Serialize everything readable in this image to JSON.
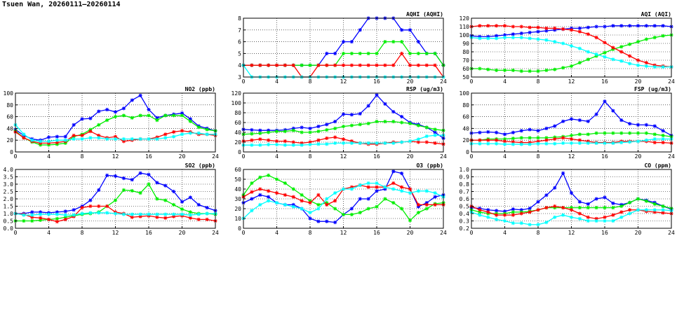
{
  "title": "Tsuen Wan, 20260111—20260114",
  "colors": {
    "blue": "#0000ff",
    "green": "#00ee00",
    "red": "#ff0000",
    "cyan": "#00ffff",
    "axis": "#000000",
    "grid": "#000000"
  },
  "chart_data": [
    {
      "id": "aqhi",
      "type": "line",
      "title": "AQHI (AQHI)",
      "xticks": [
        "0",
        "4",
        "8",
        "12",
        "16",
        "20",
        "24"
      ],
      "yticks": [
        "3",
        "4",
        "5",
        "6",
        "7",
        "8"
      ],
      "xlim": [
        0,
        24
      ],
      "ylim": [
        3,
        8
      ],
      "grid": true,
      "series": [
        {
          "color": "blue",
          "values": [
            4,
            4,
            4,
            4,
            4,
            4,
            4,
            4,
            4,
            4,
            5,
            5,
            6,
            6,
            7,
            8,
            8,
            8,
            8,
            7,
            7,
            6,
            5,
            5,
            4
          ]
        },
        {
          "color": "green",
          "values": [
            4,
            4,
            4,
            4,
            4,
            4,
            4,
            4,
            4,
            4,
            4,
            4,
            5,
            5,
            5,
            5,
            5,
            6,
            6,
            6,
            5,
            5,
            5,
            5,
            4
          ]
        },
        {
          "color": "red",
          "values": [
            4,
            4,
            4,
            4,
            4,
            4,
            4,
            3,
            3,
            4,
            4,
            4,
            4,
            4,
            4,
            4,
            4,
            4,
            4,
            5,
            4,
            4,
            4,
            4,
            3
          ]
        },
        {
          "color": "cyan",
          "values": [
            4,
            3,
            3,
            3,
            3,
            3,
            3,
            3,
            3,
            3,
            3,
            3,
            3,
            3,
            3,
            3,
            3,
            3,
            3,
            3,
            3,
            3,
            3,
            3,
            3
          ]
        }
      ]
    },
    {
      "id": "aqi",
      "type": "line",
      "title": "AQI (AQI)",
      "xticks": [
        "0",
        "4",
        "8",
        "12",
        "16",
        "20",
        "24"
      ],
      "yticks": [
        "50",
        "60",
        "70",
        "80",
        "90",
        "100",
        "110",
        "120"
      ],
      "xlim": [
        0,
        24
      ],
      "ylim": [
        50,
        120
      ],
      "grid": true,
      "series": [
        {
          "color": "blue",
          "values": [
            99,
            98,
            98,
            99,
            100,
            101,
            102,
            103,
            104,
            105,
            106,
            107,
            108,
            108,
            109,
            110,
            110,
            111,
            111,
            111,
            111,
            111,
            111,
            111,
            110
          ]
        },
        {
          "color": "green",
          "values": [
            60,
            60,
            59,
            58,
            58,
            58,
            57,
            57,
            57,
            58,
            59,
            61,
            63,
            67,
            71,
            75,
            79,
            83,
            86,
            89,
            92,
            95,
            97,
            99,
            100
          ]
        },
        {
          "color": "red",
          "values": [
            110,
            111,
            111,
            111,
            111,
            110,
            110,
            109,
            109,
            108,
            108,
            107,
            106,
            104,
            101,
            97,
            91,
            85,
            80,
            75,
            70,
            67,
            64,
            63,
            62
          ]
        },
        {
          "color": "cyan",
          "values": [
            97,
            96,
            96,
            96,
            97,
            97,
            97,
            96,
            95,
            94,
            92,
            90,
            87,
            84,
            80,
            77,
            74,
            71,
            69,
            66,
            64,
            63,
            62,
            62,
            62
          ]
        }
      ]
    },
    {
      "id": "no2",
      "type": "line",
      "title": "NO2 (ppb)",
      "xticks": [
        "0",
        "4",
        "8",
        "12",
        "16",
        "20",
        "24"
      ],
      "yticks": [
        "0",
        "20",
        "40",
        "60",
        "80",
        "100"
      ],
      "xlim": [
        0,
        24
      ],
      "ylim": [
        0,
        100
      ],
      "grid": true,
      "series": [
        {
          "color": "blue",
          "values": [
            38,
            28,
            22,
            20,
            25,
            26,
            26,
            46,
            56,
            57,
            69,
            72,
            68,
            74,
            88,
            96,
            72,
            58,
            62,
            64,
            66,
            56,
            44,
            40,
            36
          ]
        },
        {
          "color": "green",
          "values": [
            36,
            24,
            17,
            12,
            12,
            13,
            15,
            26,
            30,
            38,
            46,
            54,
            60,
            62,
            58,
            62,
            62,
            54,
            62,
            62,
            62,
            52,
            42,
            38,
            36
          ]
        },
        {
          "color": "red",
          "values": [
            34,
            24,
            18,
            15,
            15,
            16,
            18,
            28,
            28,
            35,
            28,
            24,
            26,
            18,
            20,
            22,
            22,
            25,
            30,
            34,
            36,
            34,
            30,
            30,
            28
          ]
        },
        {
          "color": "cyan",
          "values": [
            46,
            30,
            20,
            18,
            18,
            20,
            20,
            22,
            22,
            24,
            24,
            22,
            22,
            22,
            22,
            22,
            22,
            22,
            24,
            26,
            30,
            32,
            32,
            30,
            30
          ]
        }
      ]
    },
    {
      "id": "rsp",
      "type": "line",
      "title": "RSP (ug/m3)",
      "xticks": [
        "0",
        "4",
        "8",
        "12",
        "16",
        "20",
        "24"
      ],
      "yticks": [
        "0",
        "20",
        "40",
        "60",
        "80",
        "100",
        "120"
      ],
      "xlim": [
        0,
        24
      ],
      "ylim": [
        0,
        120
      ],
      "grid": true,
      "series": [
        {
          "color": "blue",
          "values": [
            46,
            45,
            44,
            44,
            44,
            45,
            48,
            50,
            48,
            52,
            56,
            62,
            77,
            76,
            78,
            94,
            116,
            98,
            82,
            72,
            60,
            56,
            50,
            40,
            28
          ]
        },
        {
          "color": "green",
          "values": [
            36,
            37,
            38,
            40,
            42,
            42,
            44,
            40,
            40,
            42,
            45,
            48,
            52,
            54,
            56,
            58,
            62,
            62,
            62,
            60,
            58,
            54,
            50,
            46,
            44
          ]
        },
        {
          "color": "red",
          "values": [
            22,
            24,
            26,
            24,
            22,
            22,
            20,
            18,
            20,
            24,
            28,
            30,
            26,
            22,
            18,
            16,
            16,
            18,
            20,
            20,
            22,
            20,
            20,
            18,
            16
          ]
        },
        {
          "color": "cyan",
          "values": [
            14,
            14,
            14,
            15,
            15,
            14,
            14,
            14,
            15,
            16,
            16,
            18,
            18,
            18,
            18,
            18,
            18,
            18,
            18,
            20,
            22,
            26,
            32,
            34,
            34
          ]
        }
      ]
    },
    {
      "id": "fsp",
      "type": "line",
      "title": "FSP (ug/m3)",
      "xticks": [
        "0",
        "4",
        "8",
        "12",
        "16",
        "20",
        "24"
      ],
      "yticks": [
        "0",
        "20",
        "40",
        "60",
        "80",
        "100"
      ],
      "xlim": [
        0,
        24
      ],
      "ylim": [
        0,
        100
      ],
      "grid": true,
      "series": [
        {
          "color": "blue",
          "values": [
            32,
            33,
            34,
            33,
            30,
            33,
            36,
            38,
            36,
            40,
            44,
            52,
            56,
            54,
            52,
            64,
            86,
            70,
            54,
            48,
            46,
            46,
            44,
            36,
            28
          ]
        },
        {
          "color": "green",
          "values": [
            20,
            20,
            22,
            22,
            22,
            23,
            24,
            24,
            24,
            24,
            25,
            26,
            28,
            30,
            30,
            32,
            32,
            32,
            32,
            32,
            32,
            32,
            30,
            28,
            26
          ]
        },
        {
          "color": "red",
          "values": [
            20,
            20,
            20,
            20,
            18,
            17,
            16,
            16,
            18,
            20,
            22,
            24,
            22,
            20,
            18,
            16,
            16,
            16,
            18,
            18,
            18,
            18,
            16,
            16,
            15
          ]
        },
        {
          "color": "cyan",
          "values": [
            14,
            14,
            14,
            14,
            13,
            13,
            13,
            13,
            14,
            14,
            14,
            15,
            15,
            15,
            15,
            15,
            15,
            15,
            16,
            17,
            18,
            20,
            22,
            22,
            22
          ]
        }
      ]
    },
    {
      "id": "so2",
      "type": "line",
      "title": "SO2 (ppb)",
      "xticks": [
        "0",
        "4",
        "8",
        "12",
        "16",
        "20",
        "24"
      ],
      "yticks": [
        "0.0",
        "0.5",
        "1.0",
        "1.5",
        "2.0",
        "2.5",
        "3.0",
        "3.5",
        "4.0"
      ],
      "xlim": [
        0,
        24
      ],
      "ylim": [
        0,
        4
      ],
      "grid": true,
      "series": [
        {
          "color": "blue",
          "values": [
            1.0,
            1.0,
            1.1,
            1.1,
            1.05,
            1.1,
            1.15,
            1.25,
            1.5,
            1.9,
            2.6,
            3.6,
            3.55,
            3.4,
            3.3,
            3.75,
            3.65,
            3.1,
            2.9,
            2.5,
            1.8,
            2.1,
            1.6,
            1.4,
            1.2
          ]
        },
        {
          "color": "green",
          "values": [
            0.5,
            0.5,
            0.5,
            0.55,
            0.6,
            0.65,
            0.75,
            0.85,
            0.95,
            1.0,
            1.1,
            1.5,
            1.9,
            2.6,
            2.55,
            2.4,
            3.0,
            2.0,
            1.9,
            1.6,
            1.3,
            1.1,
            1.0,
            1.0,
            0.95
          ]
        },
        {
          "color": "red",
          "values": [
            1.0,
            0.95,
            0.75,
            0.7,
            0.6,
            0.45,
            0.6,
            0.8,
            1.4,
            1.5,
            1.5,
            1.5,
            1.1,
            1.0,
            0.75,
            0.8,
            0.85,
            0.75,
            0.7,
            0.8,
            0.85,
            0.7,
            0.6,
            0.6,
            0.5
          ]
        },
        {
          "color": "cyan",
          "values": [
            1.0,
            0.9,
            0.9,
            0.95,
            0.95,
            0.95,
            0.9,
            0.9,
            1.0,
            1.05,
            1.05,
            1.05,
            1.0,
            0.95,
            0.95,
            0.95,
            0.95,
            0.95,
            0.95,
            0.95,
            0.95,
            0.9,
            0.95,
            1.0,
            1.0
          ]
        }
      ]
    },
    {
      "id": "o3",
      "type": "line",
      "title": "O3 (ppb)",
      "xticks": [
        "0",
        "4",
        "8",
        "12",
        "16",
        "20",
        "24"
      ],
      "yticks": [
        "0",
        "10",
        "20",
        "30",
        "40",
        "50",
        "60"
      ],
      "xlim": [
        0,
        24
      ],
      "ylim": [
        0,
        60
      ],
      "grid": true,
      "series": [
        {
          "color": "blue",
          "values": [
            26,
            30,
            34,
            32,
            26,
            24,
            24,
            20,
            10,
            7,
            7,
            6,
            14,
            20,
            30,
            30,
            38,
            40,
            58,
            56,
            40,
            22,
            26,
            32,
            34
          ]
        },
        {
          "color": "green",
          "values": [
            34,
            46,
            52,
            54,
            50,
            46,
            40,
            34,
            28,
            24,
            26,
            20,
            14,
            14,
            16,
            20,
            22,
            30,
            26,
            20,
            8,
            16,
            20,
            25,
            26
          ]
        },
        {
          "color": "red",
          "values": [
            32,
            37,
            40,
            38,
            36,
            34,
            32,
            28,
            26,
            34,
            24,
            28,
            40,
            42,
            44,
            42,
            42,
            42,
            46,
            42,
            40,
            24,
            24,
            24,
            24
          ]
        },
        {
          "color": "cyan",
          "values": [
            10,
            18,
            24,
            28,
            26,
            24,
            22,
            20,
            16,
            20,
            30,
            36,
            40,
            40,
            44,
            46,
            46,
            42,
            40,
            38,
            36,
            38,
            38,
            36,
            32
          ]
        }
      ]
    },
    {
      "id": "co",
      "type": "line",
      "title": "CO (ppm)",
      "xticks": [
        "0",
        "4",
        "8",
        "12",
        "16",
        "20",
        "24"
      ],
      "yticks": [
        "0.2",
        "0.3",
        "0.4",
        "0.5",
        "0.6",
        "0.7",
        "0.8",
        "0.9",
        "1.0"
      ],
      "xlim": [
        0,
        24
      ],
      "ylim": [
        0.2,
        1.0
      ],
      "grid": true,
      "series": [
        {
          "color": "blue",
          "values": [
            0.48,
            0.47,
            0.45,
            0.44,
            0.43,
            0.46,
            0.45,
            0.47,
            0.56,
            0.65,
            0.75,
            0.95,
            0.68,
            0.56,
            0.53,
            0.6,
            0.62,
            0.54,
            0.52,
            0.55,
            0.6,
            0.58,
            0.55,
            0.5,
            0.46
          ]
        },
        {
          "color": "green",
          "values": [
            0.45,
            0.42,
            0.4,
            0.4,
            0.4,
            0.42,
            0.42,
            0.43,
            0.45,
            0.48,
            0.48,
            0.48,
            0.48,
            0.48,
            0.48,
            0.48,
            0.48,
            0.48,
            0.5,
            0.55,
            0.6,
            0.57,
            0.53,
            0.5,
            0.47
          ]
        },
        {
          "color": "red",
          "values": [
            0.5,
            0.45,
            0.42,
            0.38,
            0.38,
            0.38,
            0.4,
            0.42,
            0.45,
            0.48,
            0.5,
            0.48,
            0.45,
            0.4,
            0.35,
            0.33,
            0.35,
            0.38,
            0.42,
            0.45,
            0.45,
            0.43,
            0.42,
            0.41,
            0.4
          ]
        },
        {
          "color": "cyan",
          "values": [
            0.42,
            0.38,
            0.35,
            0.32,
            0.3,
            0.27,
            0.27,
            0.25,
            0.25,
            0.28,
            0.35,
            0.38,
            0.35,
            0.33,
            0.3,
            0.3,
            0.3,
            0.3,
            0.35,
            0.4,
            0.45,
            0.45,
            0.45,
            0.45,
            0.44
          ]
        }
      ]
    }
  ]
}
